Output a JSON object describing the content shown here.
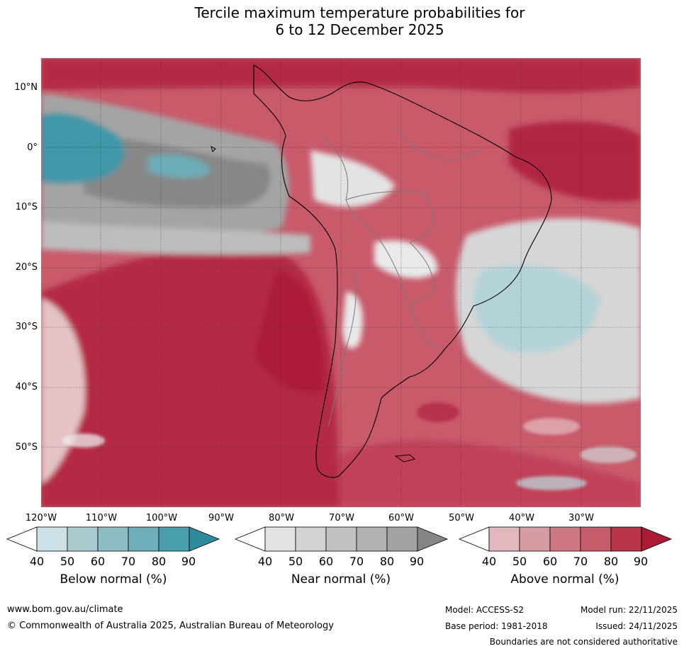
{
  "title": {
    "line1": "Tercile maximum temperature probabilities for",
    "line2": "6 to 12 December 2025"
  },
  "map": {
    "region": "South America and surrounding oceans",
    "lat_labels": [
      "10°N",
      "0°",
      "10°S",
      "20°S",
      "30°S",
      "40°S",
      "50°S"
    ],
    "lon_labels": [
      "120°W",
      "110°W",
      "100°W",
      "90°W",
      "80°W",
      "70°W",
      "60°W",
      "50°W",
      "40°W",
      "30°W"
    ],
    "colors": {
      "above": [
        "#e2b7bd",
        "#d69ca3",
        "#cd7883",
        "#c45c6a",
        "#b93449",
        "#ab1c34"
      ],
      "near": [
        "#e3e3e3",
        "#d2d2d2",
        "#c2c2c2",
        "#b2b2b2",
        "#a2a2a2",
        "#858585"
      ],
      "below": [
        "#cbe1e5",
        "#a9cace",
        "#8dbdc3",
        "#6eafb9",
        "#4a9fae",
        "#2e8b9e"
      ]
    }
  },
  "legends": [
    {
      "title": "Below normal (%)",
      "ticks": [
        "40",
        "50",
        "60",
        "70",
        "80",
        "90"
      ]
    },
    {
      "title": "Near normal (%)",
      "ticks": [
        "40",
        "50",
        "60",
        "70",
        "80",
        "90"
      ]
    },
    {
      "title": "Above normal (%)",
      "ticks": [
        "40",
        "50",
        "60",
        "70",
        "80",
        "90"
      ]
    }
  ],
  "footer": {
    "website": "www.bom.gov.au/climate",
    "copyright": "© Commonwealth of Australia 2025, Australian Bureau of Meteorology",
    "model": "Model: ACCESS-S2",
    "model_run": "Model run: 22/11/2025",
    "base_period": "Base period: 1981-2018",
    "issued": "Issued: 24/11/2025",
    "disclaimer": "Boundaries are not considered authoritative"
  }
}
